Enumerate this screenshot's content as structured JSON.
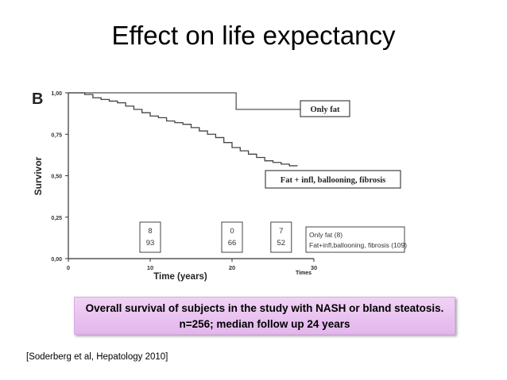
{
  "slide": {
    "title": "Effect on life expectancy",
    "caption_line1": "Overall survival of subjects in the study with NASH or bland steatosis.",
    "caption_line2": "n=256; median follow up 24 years",
    "reference": "[Soderberg et al, Hepatology 2010]"
  },
  "chart_data": {
    "type": "line",
    "panel_label": "B",
    "xlabel": "Time (years)",
    "ylabel": "Survivor",
    "x_unit_label": "Times",
    "xlim": [
      0,
      30
    ],
    "ylim": [
      0,
      1
    ],
    "x_ticks": [
      "0",
      "10",
      "20",
      "30"
    ],
    "y_ticks": [
      "0,00",
      "0,25",
      "0,50",
      "0,75",
      "1,00"
    ],
    "grid": false,
    "series": [
      {
        "name": "Only fat",
        "label": "Only fat",
        "color": "#555555",
        "points": [
          [
            0,
            1.0
          ],
          [
            20.5,
            1.0
          ],
          [
            20.5,
            0.9
          ],
          [
            29,
            0.9
          ]
        ]
      },
      {
        "name": "Fat + infl, ballooning, fibrosis",
        "label": "Fat + infl, ballooning, fibrosis",
        "color": "#444444",
        "points": [
          [
            0,
            1.0
          ],
          [
            1.5,
            1.0
          ],
          [
            2,
            0.99
          ],
          [
            3,
            0.97
          ],
          [
            4,
            0.96
          ],
          [
            5,
            0.95
          ],
          [
            6,
            0.94
          ],
          [
            7,
            0.92
          ],
          [
            8,
            0.9
          ],
          [
            9,
            0.88
          ],
          [
            10,
            0.86
          ],
          [
            11,
            0.85
          ],
          [
            12,
            0.83
          ],
          [
            13,
            0.82
          ],
          [
            14,
            0.81
          ],
          [
            15,
            0.79
          ],
          [
            16,
            0.77
          ],
          [
            17,
            0.75
          ],
          [
            18,
            0.73
          ],
          [
            19,
            0.7
          ],
          [
            20,
            0.67
          ],
          [
            21,
            0.65
          ],
          [
            22,
            0.63
          ],
          [
            23,
            0.61
          ],
          [
            24,
            0.59
          ],
          [
            25,
            0.58
          ],
          [
            26,
            0.57
          ],
          [
            27,
            0.56
          ],
          [
            28,
            0.56
          ]
        ]
      }
    ],
    "at_risk": [
      {
        "time": "10",
        "only_fat": "8",
        "fat_infl": "93"
      },
      {
        "time": "20",
        "only_fat": "0",
        "fat_infl": "66"
      },
      {
        "time": "26",
        "only_fat": "7",
        "fat_infl": "52"
      }
    ],
    "at_risk_legend": [
      "Only fat (8)",
      "Fat+infl,ballooning, fibrosis (109)"
    ]
  }
}
